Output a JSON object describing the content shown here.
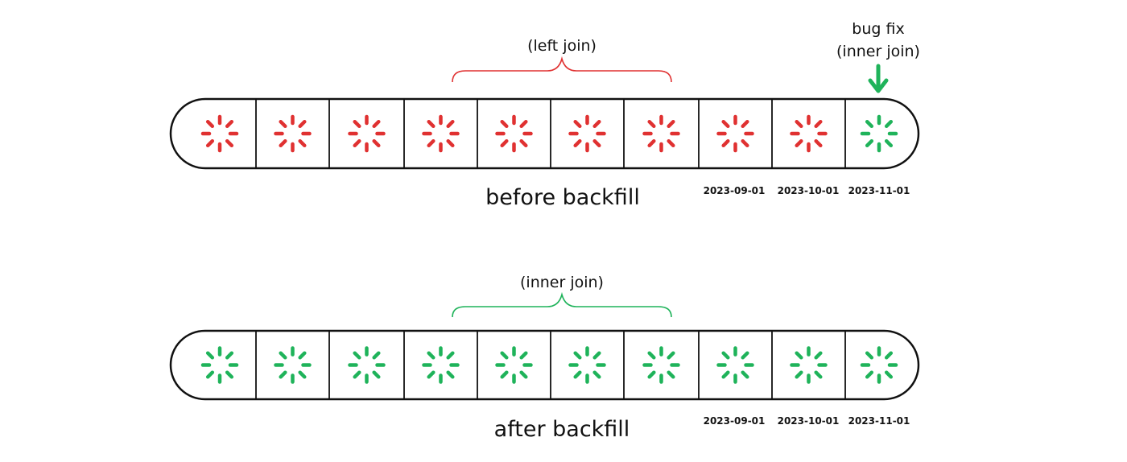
{
  "colors": {
    "red": "#e03131",
    "green": "#1fb35a",
    "outline": "#111111"
  },
  "spinner_icon": "loading-spinner-icon",
  "bug_fix": {
    "line1": "bug fix",
    "line2": "(inner join)",
    "arrow_icon": "arrow-down-icon"
  },
  "before": {
    "caption": "before backfill",
    "brace_label": "(left join)",
    "brace_color": "red",
    "cell_colors": [
      "red",
      "red",
      "red",
      "red",
      "red",
      "red",
      "red",
      "red",
      "red",
      "green"
    ],
    "dates": [
      "2023-09-01",
      "2023-10-01",
      "2023-11-01"
    ]
  },
  "after": {
    "caption": "after backfill",
    "brace_label": "(inner join)",
    "brace_color": "green",
    "cell_colors": [
      "green",
      "green",
      "green",
      "green",
      "green",
      "green",
      "green",
      "green",
      "green",
      "green"
    ],
    "dates": [
      "2023-09-01",
      "2023-10-01",
      "2023-11-01"
    ]
  }
}
